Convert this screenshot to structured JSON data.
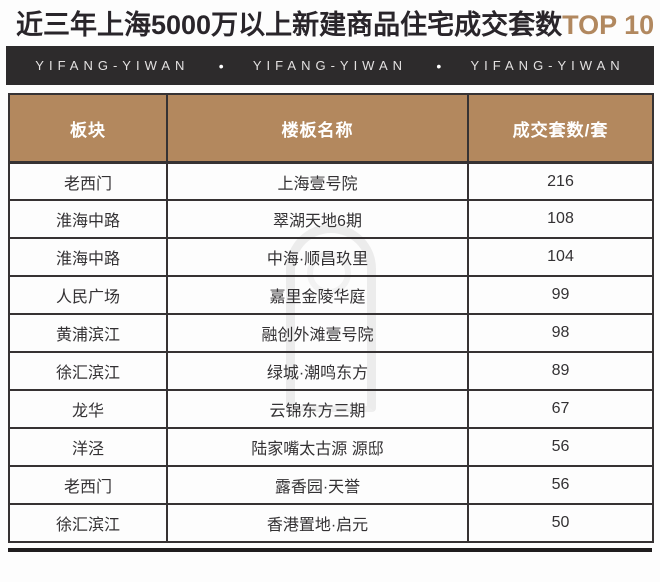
{
  "title": {
    "main": "近三年上海5000万以上新建商品住宅成交套数",
    "highlight": "TOP 10"
  },
  "banner": {
    "items": [
      "YIFANG-YIWAN",
      "YIFANG-YIWAN",
      "YIFANG-YIWAN"
    ],
    "separator": "•"
  },
  "table": {
    "headers": [
      "板块",
      "楼板名称",
      "成交套数/套"
    ],
    "rows": [
      [
        "老西门",
        "上海壹号院",
        "216"
      ],
      [
        "淮海中路",
        "翠湖天地6期",
        "108"
      ],
      [
        "淮海中路",
        "中海·顺昌玖里",
        "104"
      ],
      [
        "人民广场",
        "嘉里金陵华庭",
        "99"
      ],
      [
        "黄浦滨江",
        "融创外滩壹号院",
        "98"
      ],
      [
        "徐汇滨江",
        "绿城·潮鸣东方",
        "89"
      ],
      [
        "龙华",
        "云锦东方三期",
        "67"
      ],
      [
        "洋泾",
        "陆家嘴太古源 源邸",
        "56"
      ],
      [
        "老西门",
        "露香园·天誉",
        "56"
      ],
      [
        "徐汇滨江",
        "香港置地·启元",
        "50"
      ]
    ]
  },
  "colors": {
    "accent": "#b1885f",
    "header_bg": "#b3885e",
    "banner_bg": "#2d2b2c",
    "title_text": "#29252a",
    "border": "#363233"
  },
  "chart_data": {
    "type": "table",
    "title": "近三年上海5000万以上新建商品住宅成交套数TOP 10",
    "columns": [
      "板块",
      "楼板名称",
      "成交套数/套"
    ],
    "rows": [
      [
        "老西门",
        "上海壹号院",
        216
      ],
      [
        "淮海中路",
        "翠湖天地6期",
        108
      ],
      [
        "淮海中路",
        "中海·顺昌玖里",
        104
      ],
      [
        "人民广场",
        "嘉里金陵华庭",
        99
      ],
      [
        "黄浦滨江",
        "融创外滩壹号院",
        98
      ],
      [
        "徐汇滨江",
        "绿城·潮鸣东方",
        89
      ],
      [
        "龙华",
        "云锦东方三期",
        67
      ],
      [
        "洋泾",
        "陆家嘴太古源 源邸",
        56
      ],
      [
        "老西门",
        "露香园·天誉",
        56
      ],
      [
        "徐汇滨江",
        "香港置地·启元",
        50
      ]
    ]
  }
}
